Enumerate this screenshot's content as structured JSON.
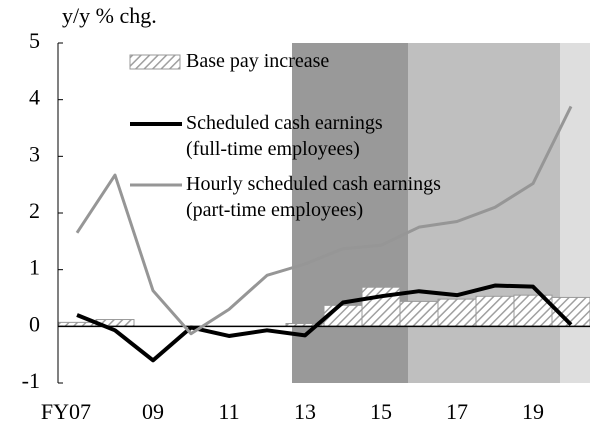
{
  "chart_data": {
    "type": "bar-line",
    "y_label": "y/y % chg.",
    "categories": [
      "FY07",
      null,
      "09",
      null,
      "11",
      null,
      "13",
      null,
      "15",
      null,
      "17",
      null,
      "19",
      null
    ],
    "ylim": [
      -1,
      5
    ],
    "yticks": [
      -1,
      0,
      1,
      2,
      3,
      4,
      5
    ],
    "series": [
      {
        "name": "Base pay increase",
        "type": "bar",
        "color": "#999999",
        "values": [
          0.07,
          0.12,
          0,
          0,
          0,
          0,
          0.05,
          0.37,
          0.69,
          0.44,
          0.48,
          0.53,
          0.55,
          0.51
        ]
      },
      {
        "name": "Scheduled cash earnings (full-time employees)",
        "type": "line",
        "color": "#000000",
        "values": [
          0.2,
          -0.07,
          -0.6,
          -0.02,
          -0.17,
          -0.07,
          -0.16,
          0.42,
          0.53,
          0.62,
          0.55,
          0.72,
          0.7,
          0.03
        ]
      },
      {
        "name": "Hourly scheduled cash earnings (part-time employees)",
        "type": "line",
        "color": "#969696",
        "values": [
          1.65,
          2.67,
          0.63,
          -0.13,
          0.3,
          0.9,
          1.1,
          1.37,
          1.43,
          1.75,
          1.85,
          2.1,
          2.52,
          3.88
        ]
      }
    ]
  }
}
